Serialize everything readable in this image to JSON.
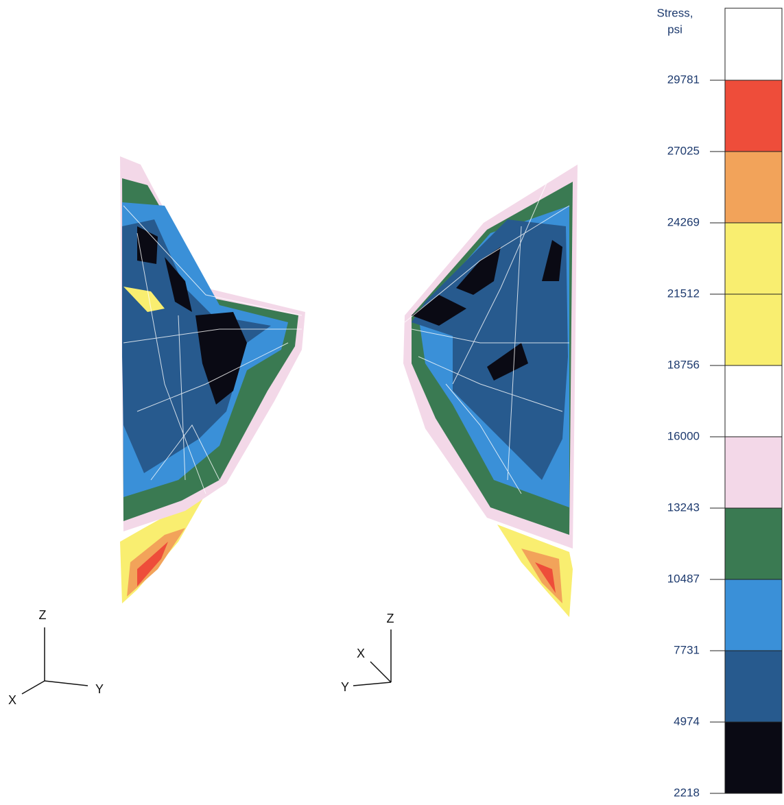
{
  "legend": {
    "title": [
      "Stress,",
      "psi"
    ],
    "ticks": [
      29781,
      27025,
      24269,
      21512,
      18756,
      16000,
      13243,
      10487,
      7731,
      4974,
      2218
    ],
    "colors": [
      "#ffffff",
      "#ee4d3a",
      "#f2a35a",
      "#f9ee70",
      "#f9ee70",
      "#ffffff",
      "#f3d8e8",
      "#3a7a52",
      "#3a90d8",
      "#275a8e",
      "#0a0a14"
    ]
  },
  "triads": [
    {
      "z": "Z",
      "y": "Y",
      "x": "X"
    },
    {
      "z": "Z",
      "y": "Y",
      "x": "X"
    }
  ]
}
